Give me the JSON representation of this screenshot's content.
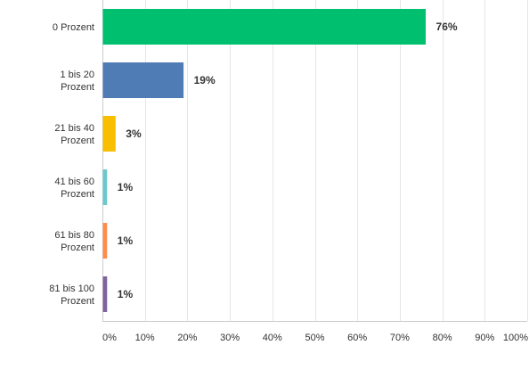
{
  "chart_data": {
    "type": "bar",
    "orientation": "horizontal",
    "categories": [
      [
        "0 Prozent"
      ],
      [
        "1 bis 20",
        "Prozent"
      ],
      [
        "21 bis 40",
        "Prozent"
      ],
      [
        "41 bis 60",
        "Prozent"
      ],
      [
        "61 bis 80",
        "Prozent"
      ],
      [
        "81 bis 100",
        "Prozent"
      ]
    ],
    "values": [
      76,
      19,
      3,
      1,
      1,
      1
    ],
    "value_labels": [
      "76%",
      "19%",
      "3%",
      "1%",
      "1%",
      "1%"
    ],
    "colors": [
      "#00bf6f",
      "#507cb6",
      "#f9be00",
      "#6bc8cd",
      "#ff8b4f",
      "#7f659c"
    ],
    "xlim": [
      0,
      100
    ],
    "xticks": [
      "0%",
      "10%",
      "20%",
      "30%",
      "40%",
      "50%",
      "60%",
      "70%",
      "80%",
      "90%",
      "100%"
    ],
    "grid": true,
    "gridColor": "#e6e6e6",
    "axisColor": "#cccccc"
  }
}
